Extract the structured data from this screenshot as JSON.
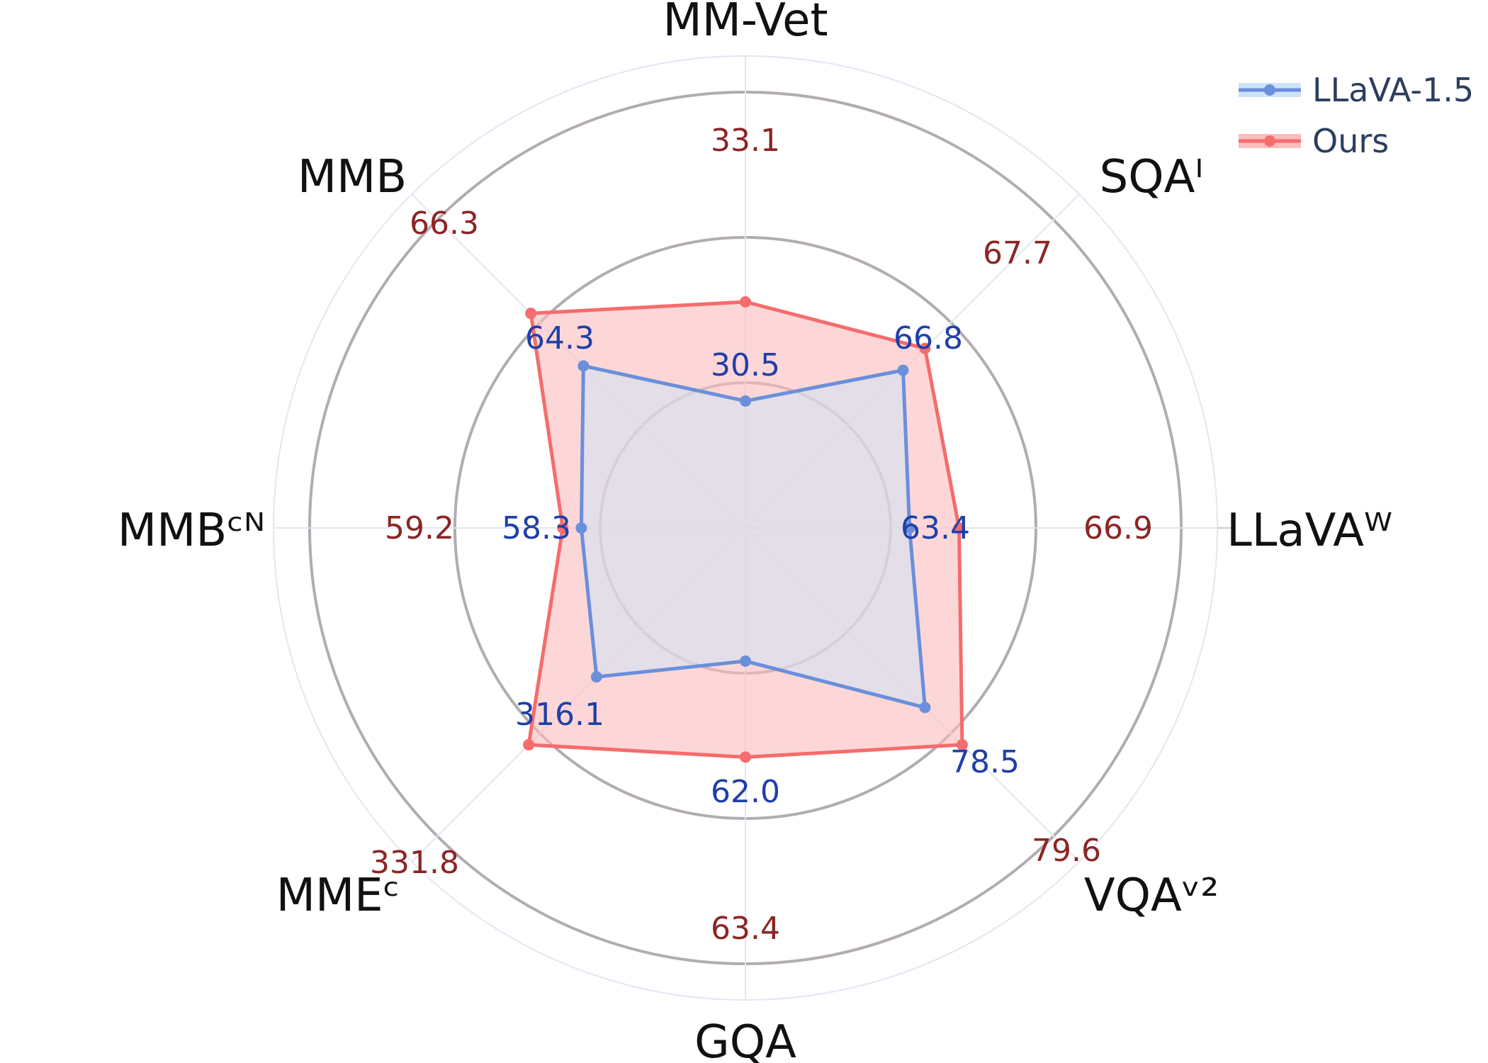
{
  "chart_data": {
    "type": "radar",
    "title": "",
    "axes": [
      "MM-Vet",
      "SQAᴵ",
      "LLaVAᵂ",
      "VQAᵛ²",
      "GQA",
      "MMEᶜ",
      "MMBᶜᴺ",
      "MMB"
    ],
    "series": [
      {
        "name": "LLaVA-1.5",
        "values": [
          30.5,
          66.8,
          63.4,
          78.5,
          62.0,
          316.1,
          58.3,
          64.3
        ],
        "labels": [
          "30.5",
          "66.8",
          "63.4",
          "78.5",
          "62.0",
          "316.1",
          "58.3",
          "64.3"
        ],
        "radial_fraction": [
          0.41,
          0.72,
          0.53,
          0.82,
          0.43,
          0.68,
          0.53,
          0.74
        ],
        "line_color": "#6a8fdb",
        "fill_color": "#cfe3f8",
        "label_color": "#1f3fa8"
      },
      {
        "name": "Ours",
        "values": [
          33.1,
          67.7,
          66.9,
          79.6,
          63.4,
          331.8,
          59.2,
          66.3
        ],
        "labels": [
          "33.1",
          "67.7",
          "66.9",
          "79.6",
          "63.4",
          "331.8",
          "59.2",
          "66.3"
        ],
        "radial_fraction": [
          0.73,
          0.82,
          0.69,
          0.99,
          0.74,
          0.99,
          0.59,
          0.98
        ],
        "line_color": "#f56c6c",
        "fill_color": "#fbbdbd",
        "label_color": "#8b2525"
      }
    ],
    "legend": {
      "position": "top-right",
      "entries": [
        "LLaVA-1.5",
        "Ours"
      ]
    },
    "grid": true
  }
}
